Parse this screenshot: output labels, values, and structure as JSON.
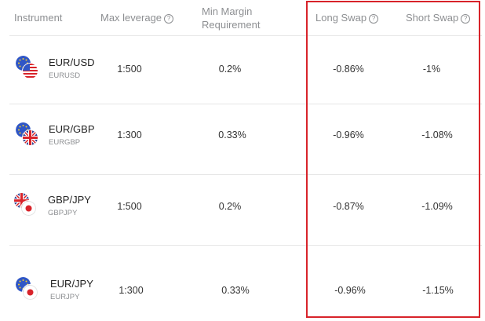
{
  "headers": {
    "instrument": "Instrument",
    "max_leverage": "Max leverage",
    "min_margin": "Min Margin Requirement",
    "long_swap": "Long Swap",
    "short_swap": "Short Swap",
    "help_glyph": "?"
  },
  "rows": [
    {
      "symbol": "EUR/USD",
      "code": "EURUSD",
      "leverage": "1:500",
      "margin": "0.2%",
      "long_swap": "-0.86%",
      "short_swap": "-1%",
      "flags": [
        "eu",
        "us"
      ]
    },
    {
      "symbol": "EUR/GBP",
      "code": "EURGBP",
      "leverage": "1:300",
      "margin": "0.33%",
      "long_swap": "-0.96%",
      "short_swap": "-1.08%",
      "flags": [
        "eu",
        "gb"
      ]
    },
    {
      "symbol": "GBP/JPY",
      "code": "GBPJPY",
      "leverage": "1:500",
      "margin": "0.2%",
      "long_swap": "-0.87%",
      "short_swap": "-1.09%",
      "flags": [
        "gb",
        "jp"
      ]
    },
    {
      "symbol": "EUR/JPY",
      "code": "EURJPY",
      "leverage": "1:300",
      "margin": "0.33%",
      "long_swap": "-0.96%",
      "short_swap": "-1.15%",
      "flags": [
        "eu",
        "jp"
      ]
    }
  ],
  "colors": {
    "highlight_border": "#d8232a",
    "header_text": "#8d8f92",
    "divider": "#e6e6e6"
  }
}
